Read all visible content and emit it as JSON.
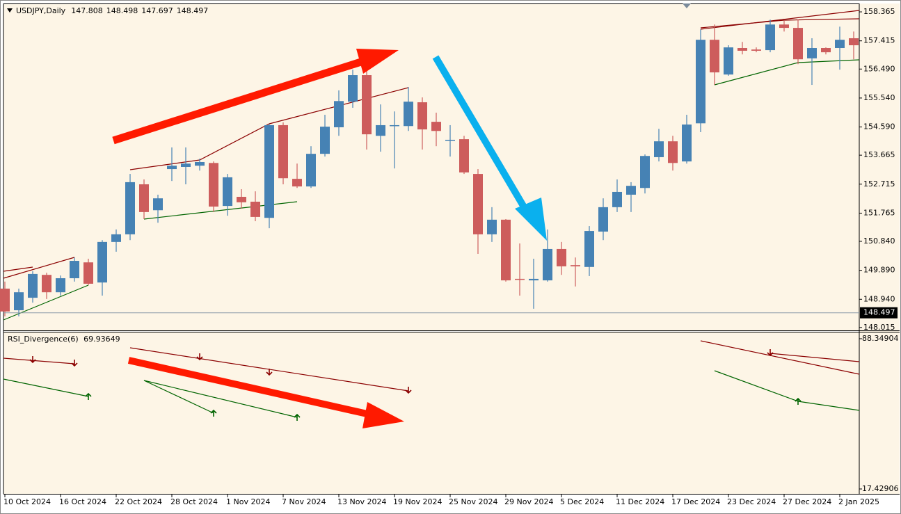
{
  "chart_data": {
    "type": "candlestick",
    "symbol": "USDJPY,Daily",
    "header_values": [
      147.808,
      148.498,
      147.697,
      148.497
    ],
    "categories": [
      "10 Oct 2024",
      null,
      null,
      null,
      "16 Oct 2024",
      null,
      null,
      null,
      "22 Oct 2024",
      null,
      null,
      null,
      "28 Oct 2024",
      null,
      null,
      null,
      "1 Nov 2024",
      null,
      null,
      null,
      "7 Nov 2024",
      null,
      null,
      null,
      "13 Nov 2024",
      null,
      null,
      null,
      "19 Nov 2024",
      null,
      null,
      null,
      "25 Nov 2024",
      null,
      null,
      null,
      "29 Nov 2024",
      null,
      null,
      null,
      "5 Dec 2024",
      null,
      null,
      null,
      "11 Dec 2024",
      null,
      null,
      null,
      "17 Dec 2024",
      null,
      null,
      null,
      "23 Dec 2024",
      null,
      null,
      null,
      "27 Dec 2024",
      null,
      null,
      null,
      "2 Jan 2025",
      null
    ],
    "open": [
      149.29,
      148.58,
      148.99,
      149.74,
      149.17,
      149.63,
      150.15,
      149.49,
      150.82,
      151.07,
      152.71,
      151.86,
      153.21,
      153.28,
      153.32,
      153.41,
      152.0,
      152.3,
      152.14,
      151.61,
      154.65,
      152.89,
      152.64,
      153.71,
      154.58,
      155.42,
      156.29,
      154.3,
      154.62,
      154.62,
      155.4,
      154.76,
      154.14,
      154.19,
      153.05,
      151.07,
      151.55,
      149.61,
      149.56,
      149.56,
      150.59,
      150.06,
      150.0,
      151.16,
      151.96,
      152.37,
      152.59,
      153.6,
      154.12,
      153.46,
      154.71,
      157.45,
      156.31,
      157.18,
      157.13,
      157.11,
      157.95,
      157.84,
      156.84,
      157.18,
      157.18,
      157.5
    ],
    "high": [
      149.52,
      149.29,
      149.86,
      149.81,
      149.72,
      150.31,
      150.27,
      150.88,
      151.23,
      153.05,
      152.87,
      152.37,
      153.92,
      153.92,
      153.55,
      153.46,
      153.05,
      152.55,
      152.48,
      154.69,
      154.74,
      153.39,
      153.96,
      154.99,
      155.79,
      156.47,
      156.47,
      155.33,
      155.1,
      155.9,
      155.56,
      155.06,
      154.65,
      154.3,
      153.21,
      151.96,
      151.57,
      150.77,
      150.27,
      151.23,
      150.82,
      150.31,
      151.34,
      152.25,
      152.87,
      152.78,
      153.69,
      154.53,
      154.3,
      154.99,
      157.79,
      157.95,
      157.27,
      157.38,
      157.2,
      158.11,
      158.07,
      158.11,
      157.5,
      157.2,
      157.88,
      157.72
    ],
    "low": [
      148.38,
      148.38,
      148.83,
      148.95,
      149.06,
      149.52,
      149.4,
      149.06,
      150.5,
      150.88,
      151.57,
      151.45,
      152.82,
      152.71,
      153.16,
      151.8,
      151.68,
      151.91,
      151.5,
      151.27,
      152.71,
      152.59,
      152.59,
      153.62,
      154.3,
      155.22,
      153.85,
      153.78,
      153.23,
      154.46,
      153.85,
      153.96,
      153.62,
      153.05,
      150.43,
      150.82,
      149.52,
      149.06,
      148.63,
      149.52,
      149.74,
      149.36,
      149.7,
      150.88,
      151.8,
      151.8,
      152.41,
      153.46,
      153.16,
      153.39,
      154.42,
      155.97,
      156.27,
      156.97,
      157.04,
      157.04,
      157.72,
      156.65,
      155.97,
      156.97,
      156.47,
      156.81
    ],
    "close": [
      148.54,
      149.17,
      149.77,
      149.17,
      149.63,
      150.2,
      149.45,
      150.82,
      151.07,
      152.78,
      151.8,
      152.25,
      153.32,
      153.39,
      153.44,
      151.98,
      152.94,
      152.12,
      151.64,
      154.65,
      152.91,
      152.64,
      153.71,
      154.6,
      155.44,
      156.29,
      154.35,
      154.65,
      154.65,
      155.42,
      154.51,
      154.46,
      154.17,
      153.1,
      151.07,
      151.55,
      149.56,
      149.58,
      149.61,
      150.59,
      150.02,
      150.02,
      151.18,
      151.96,
      152.46,
      152.66,
      153.64,
      154.12,
      153.41,
      154.67,
      157.45,
      156.38,
      157.2,
      157.09,
      157.09,
      157.95,
      157.84,
      156.81,
      157.18,
      157.04,
      157.45,
      157.27
    ],
    "up_color": "#4682b4",
    "down_color": "#cd5c5c",
    "ylim": [
      147.92,
      158.64
    ],
    "yticks": [
      158.365,
      157.415,
      {
        "value": 156.49,
        "label": "156.490"
      },
      {
        "value": 155.54,
        "label": "155.540"
      },
      {
        "value": 154.59,
        "label": "154.590"
      },
      153.665,
      152.715,
      151.765,
      {
        "value": 150.84,
        "label": "150.840"
      },
      {
        "value": 149.89,
        "label": "149.890"
      },
      {
        "value": 148.94,
        "label": "148.940"
      },
      148.015
    ],
    "last_price": 148.497,
    "indicator": {
      "title": "RSI_Divergence(6)",
      "value": 69.93649,
      "ylim": [
        17.42906,
        88.34904
      ],
      "yticks": [
        88.34904,
        17.42906
      ]
    }
  }
}
